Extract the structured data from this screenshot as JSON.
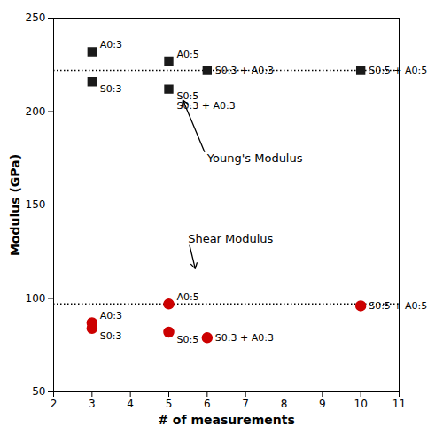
{
  "chart_data": {
    "type": "scatter",
    "xlabel": "# of measurements",
    "ylabel": "Modulus (GPa)",
    "xlim": [
      2,
      11
    ],
    "ylim": [
      50,
      250
    ],
    "xticks": [
      2,
      3,
      4,
      5,
      6,
      7,
      8,
      9,
      10,
      11
    ],
    "yticks": [
      50,
      100,
      150,
      200,
      250
    ],
    "grid": false,
    "hlines": [
      {
        "y": 222,
        "line_style": "dotted"
      },
      {
        "y": 97,
        "line_style": "dotted"
      }
    ],
    "series": [
      {
        "color": "#1a1a1a",
        "marker": "square",
        "x": [
          3,
          3,
          5,
          5,
          6,
          10
        ],
        "values": [
          232,
          216,
          227,
          212,
          222,
          222
        ],
        "labels": [
          "A0:3",
          "S0:3",
          "A0:5",
          "S0:5\nS0:3 + A0:3",
          "S0:3 + A0:3",
          "S0:5 + A0:5"
        ]
      },
      {
        "color": "#cc0000",
        "marker": "circle",
        "x": [
          3,
          3,
          5,
          5,
          6,
          10
        ],
        "values": [
          87,
          84,
          97,
          82,
          79,
          96
        ],
        "labels": [
          "A0:3",
          "S0:3",
          "A0:5",
          "S0:5",
          "S0:3 + A0:3",
          "S0:5 + A0:5"
        ]
      }
    ],
    "annotations": [
      {
        "text": "Young's Modulus",
        "x": 6.0,
        "y": 175,
        "arrow_to": [
          5.35,
          207
        ]
      },
      {
        "text": "Shear Modulus",
        "x": 5.5,
        "y": 132,
        "arrow_to": [
          5.7,
          115
        ]
      }
    ]
  }
}
